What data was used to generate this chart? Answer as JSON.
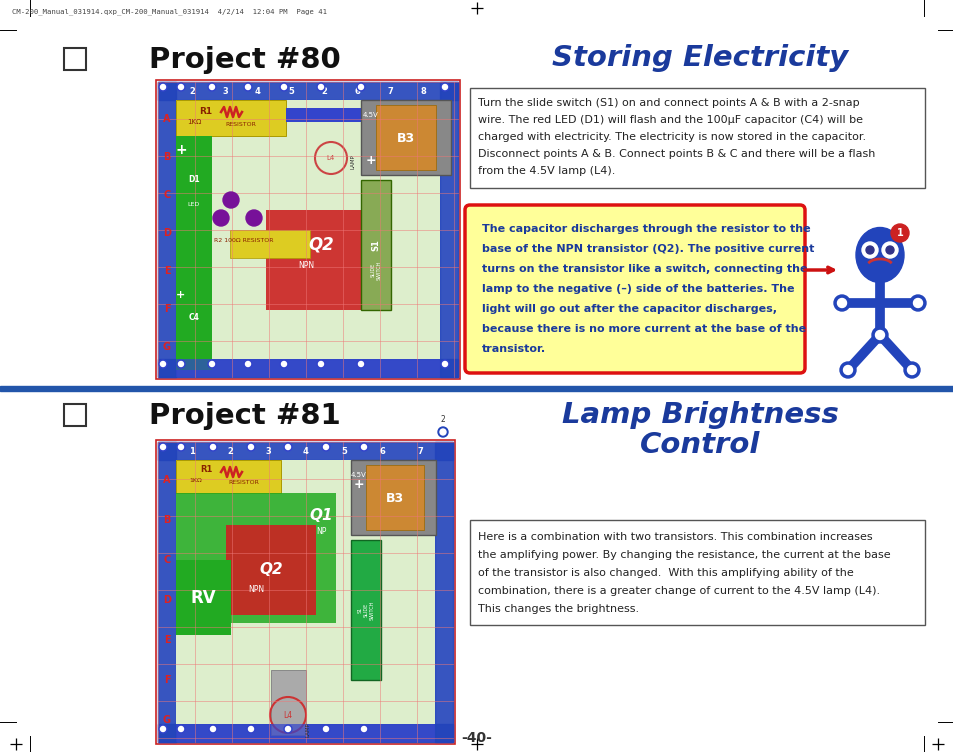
{
  "bg_color": "#ffffff",
  "page_number": "-40-",
  "header_text": "CM-200_Manual_031914.qxp_CM-200_Manual_031914  4/2/14  12:04 PM  Page 41",
  "divider_color": "#2255aa",
  "project80_title": "Project #80",
  "project81_title": "Project #81",
  "storing_title": "Storing Electricity",
  "lamp_title_line1": "Lamp Brightness",
  "lamp_title_line2": "Control",
  "title_color": "#1a3a9c",
  "project_title_color": "#111111",
  "box1_lines": [
    "Turn the slide switch (S1) on and connect points A & B with a 2-snap",
    "wire. The red LED (D1) will flash and the 100μF capacitor (C4) will be",
    "charged with electricity. The electricity is now stored in the capacitor.",
    "Disconnect points A & B. Connect points B & C and there will be a flash",
    "from the 4.5V lamp (L4)."
  ],
  "yellow_lines": [
    "The capacitor discharges through the resistor to the",
    "base of the NPN transistor (Q2). The positive current",
    "turns on the transistor like a switch, connecting the",
    "lamp to the negative (–) side of the batteries. The",
    "light will go out after the capacitor discharges,",
    "because there is no more current at the base of the",
    "transistor."
  ],
  "yellow_box_bg": "#ffff99",
  "yellow_box_border": "#dd1111",
  "yellow_text_color": "#1a3a9c",
  "box2_lines": [
    "Here is a combination with two transistors. This combination increases",
    "the amplifying power. By changing the resistance, the current at the base",
    "of the transistor is also changed.  With this amplifying ability of the",
    "combination, there is a greater change of current to the 4.5V lamp (L4).",
    "This changes the brightness."
  ]
}
